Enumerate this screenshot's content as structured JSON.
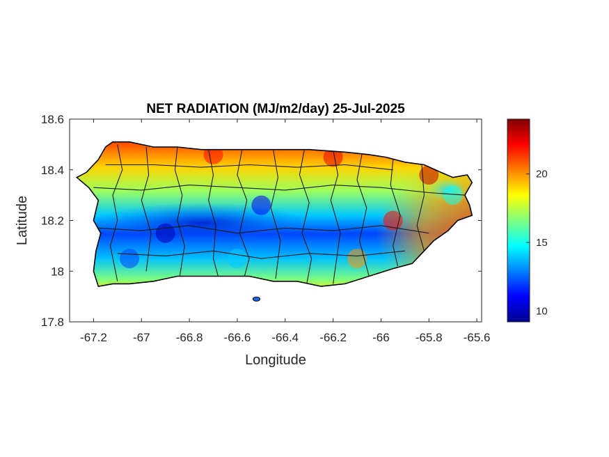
{
  "chart_data": {
    "type": "heatmap",
    "title": "NET RADIATION (MJ/m2/day) 25-Jul-2025",
    "xlabel": "Longitude",
    "ylabel": "Latitude",
    "xlim": [
      -67.3,
      -65.58
    ],
    "ylim": [
      17.8,
      18.6
    ],
    "xticks": [
      -67.2,
      -67,
      -66.8,
      -66.6,
      -66.4,
      -66.2,
      -66,
      -65.8,
      -65.6
    ],
    "xtick_labels": [
      "-67.2",
      "-67",
      "-66.8",
      "-66.6",
      "-66.4",
      "-66.2",
      "-66",
      "-65.8",
      "-65.6"
    ],
    "yticks": [
      17.8,
      18,
      18.2,
      18.4,
      18.6
    ],
    "ytick_labels": [
      "17.8",
      "18",
      "18.2",
      "18.4",
      "18.6"
    ],
    "grid": false,
    "colormap": "jet",
    "colorbar": {
      "clim": [
        9.2,
        24
      ],
      "ticks": [
        10,
        15,
        20
      ],
      "tick_labels": [
        "10",
        "15",
        "20"
      ]
    },
    "field_summary": [
      {
        "lon": -66.7,
        "lat": 18.46,
        "value": 22
      },
      {
        "lon": -66.2,
        "lat": 18.45,
        "value": 22.5
      },
      {
        "lon": -65.8,
        "lat": 18.38,
        "value": 23
      },
      {
        "lon": -66.5,
        "lat": 18.26,
        "value": 11
      },
      {
        "lon": -66.9,
        "lat": 18.15,
        "value": 10
      },
      {
        "lon": -67.05,
        "lat": 18.05,
        "value": 12
      },
      {
        "lon": -66.6,
        "lat": 18.05,
        "value": 14
      },
      {
        "lon": -66.1,
        "lat": 18.05,
        "value": 20
      },
      {
        "lon": -65.95,
        "lat": 18.2,
        "value": 22
      },
      {
        "lon": -65.7,
        "lat": 18.3,
        "value": 15
      }
    ]
  }
}
